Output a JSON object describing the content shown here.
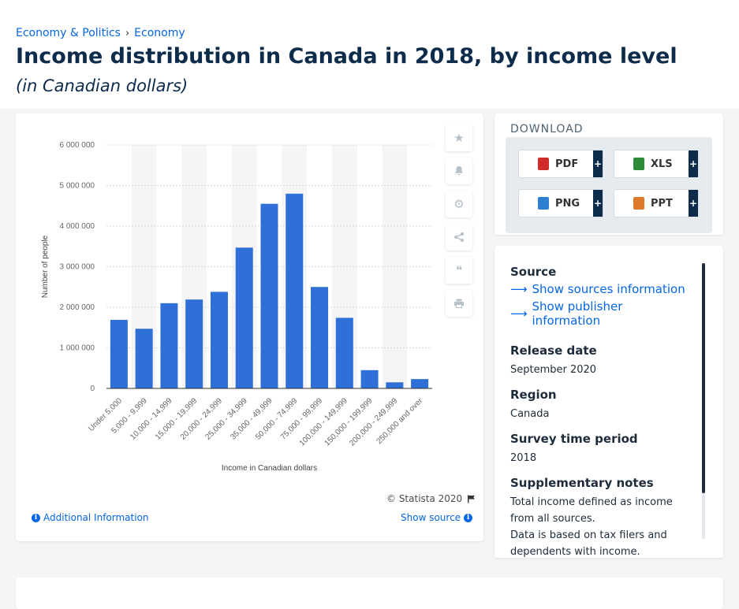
{
  "breadcrumb": {
    "items": [
      "Economy & Politics",
      "Economy"
    ],
    "separator": "›"
  },
  "header": {
    "title": "Income distribution in Canada in 2018, by income level",
    "subtitle": "(in Canadian dollars)"
  },
  "side_icons": [
    "star-icon",
    "bell-icon",
    "gear-icon",
    "share-icon",
    "quote-icon",
    "print-icon"
  ],
  "download": {
    "title": "DOWNLOAD",
    "buttons": [
      {
        "label": "PDF",
        "icon": "pdf-file-icon",
        "color": "#d12c2c"
      },
      {
        "label": "XLS",
        "icon": "xls-file-icon",
        "color": "#2e8b3a"
      },
      {
        "label": "PNG",
        "icon": "png-file-icon",
        "color": "#2f7fd1"
      },
      {
        "label": "PPT",
        "icon": "ppt-file-icon",
        "color": "#e0782a"
      }
    ],
    "plus": "+"
  },
  "info": {
    "source_label": "Source",
    "source_link": "Show sources information",
    "publisher_link": "Show publisher information",
    "release_label": "Release date",
    "release_value": "September 2020",
    "region_label": "Region",
    "region_value": "Canada",
    "survey_label": "Survey time period",
    "survey_value": "2018",
    "notes_label": "Supplementary notes",
    "notes_1": "Total income defined as income from all sources.",
    "notes_2": "Data is based on tax filers and dependents with income."
  },
  "footer": {
    "copyright": "© Statista 2020",
    "additional": "Additional Information",
    "show_source": "Show source"
  },
  "colors": {
    "accent": "#0666e5",
    "bar": "#2f6fd8",
    "title": "#0d2b4a"
  },
  "chart_data": {
    "type": "bar",
    "categories": [
      "Under 5,000",
      "5,000 - 9,999",
      "10,000 - 14,999",
      "15,000 - 19,999",
      "20,000 - 24,999",
      "25,000 - 34,999",
      "35,000 - 49,999",
      "50,000 - 74,999",
      "75,000 - 99,999",
      "100,000 - 149,999",
      "150,000 - 199,999",
      "200,000 - 249,999",
      "250,000 and over"
    ],
    "values": [
      1690000,
      1470000,
      2100000,
      2190000,
      2380000,
      3470000,
      4550000,
      4800000,
      2500000,
      1740000,
      450000,
      150000,
      230000
    ],
    "xlabel": "Income in Canadian dollars",
    "ylabel": "Number of people",
    "ylim": [
      0,
      6000000
    ],
    "yticks": [
      0,
      1000000,
      2000000,
      3000000,
      4000000,
      5000000,
      6000000
    ],
    "ytick_labels": [
      "0",
      "1 000 000",
      "2 000 000",
      "3 000 000",
      "4 000 000",
      "5 000 000",
      "6 000 000"
    ],
    "grid": true,
    "legend": "none"
  }
}
